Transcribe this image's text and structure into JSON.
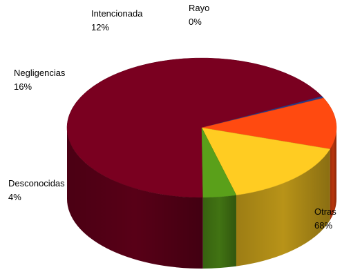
{
  "chart_data": {
    "type": "pie",
    "title": "",
    "slices": [
      {
        "name": "Otras",
        "value": 68,
        "label": "68%",
        "color": "#7a0020"
      },
      {
        "name": "Rayo",
        "value": 0.4,
        "label": "0%",
        "color": "#2a3a8a"
      },
      {
        "name": "Intencionada",
        "value": 12,
        "label": "12%",
        "color": "#ff4a10"
      },
      {
        "name": "Negligencias",
        "value": 16,
        "label": "16%",
        "color": "#ffcc22"
      },
      {
        "name": "Desconocidas",
        "value": 4,
        "label": "4%",
        "color": "#5aa01a"
      }
    ],
    "legend": "none",
    "style": "3d"
  }
}
